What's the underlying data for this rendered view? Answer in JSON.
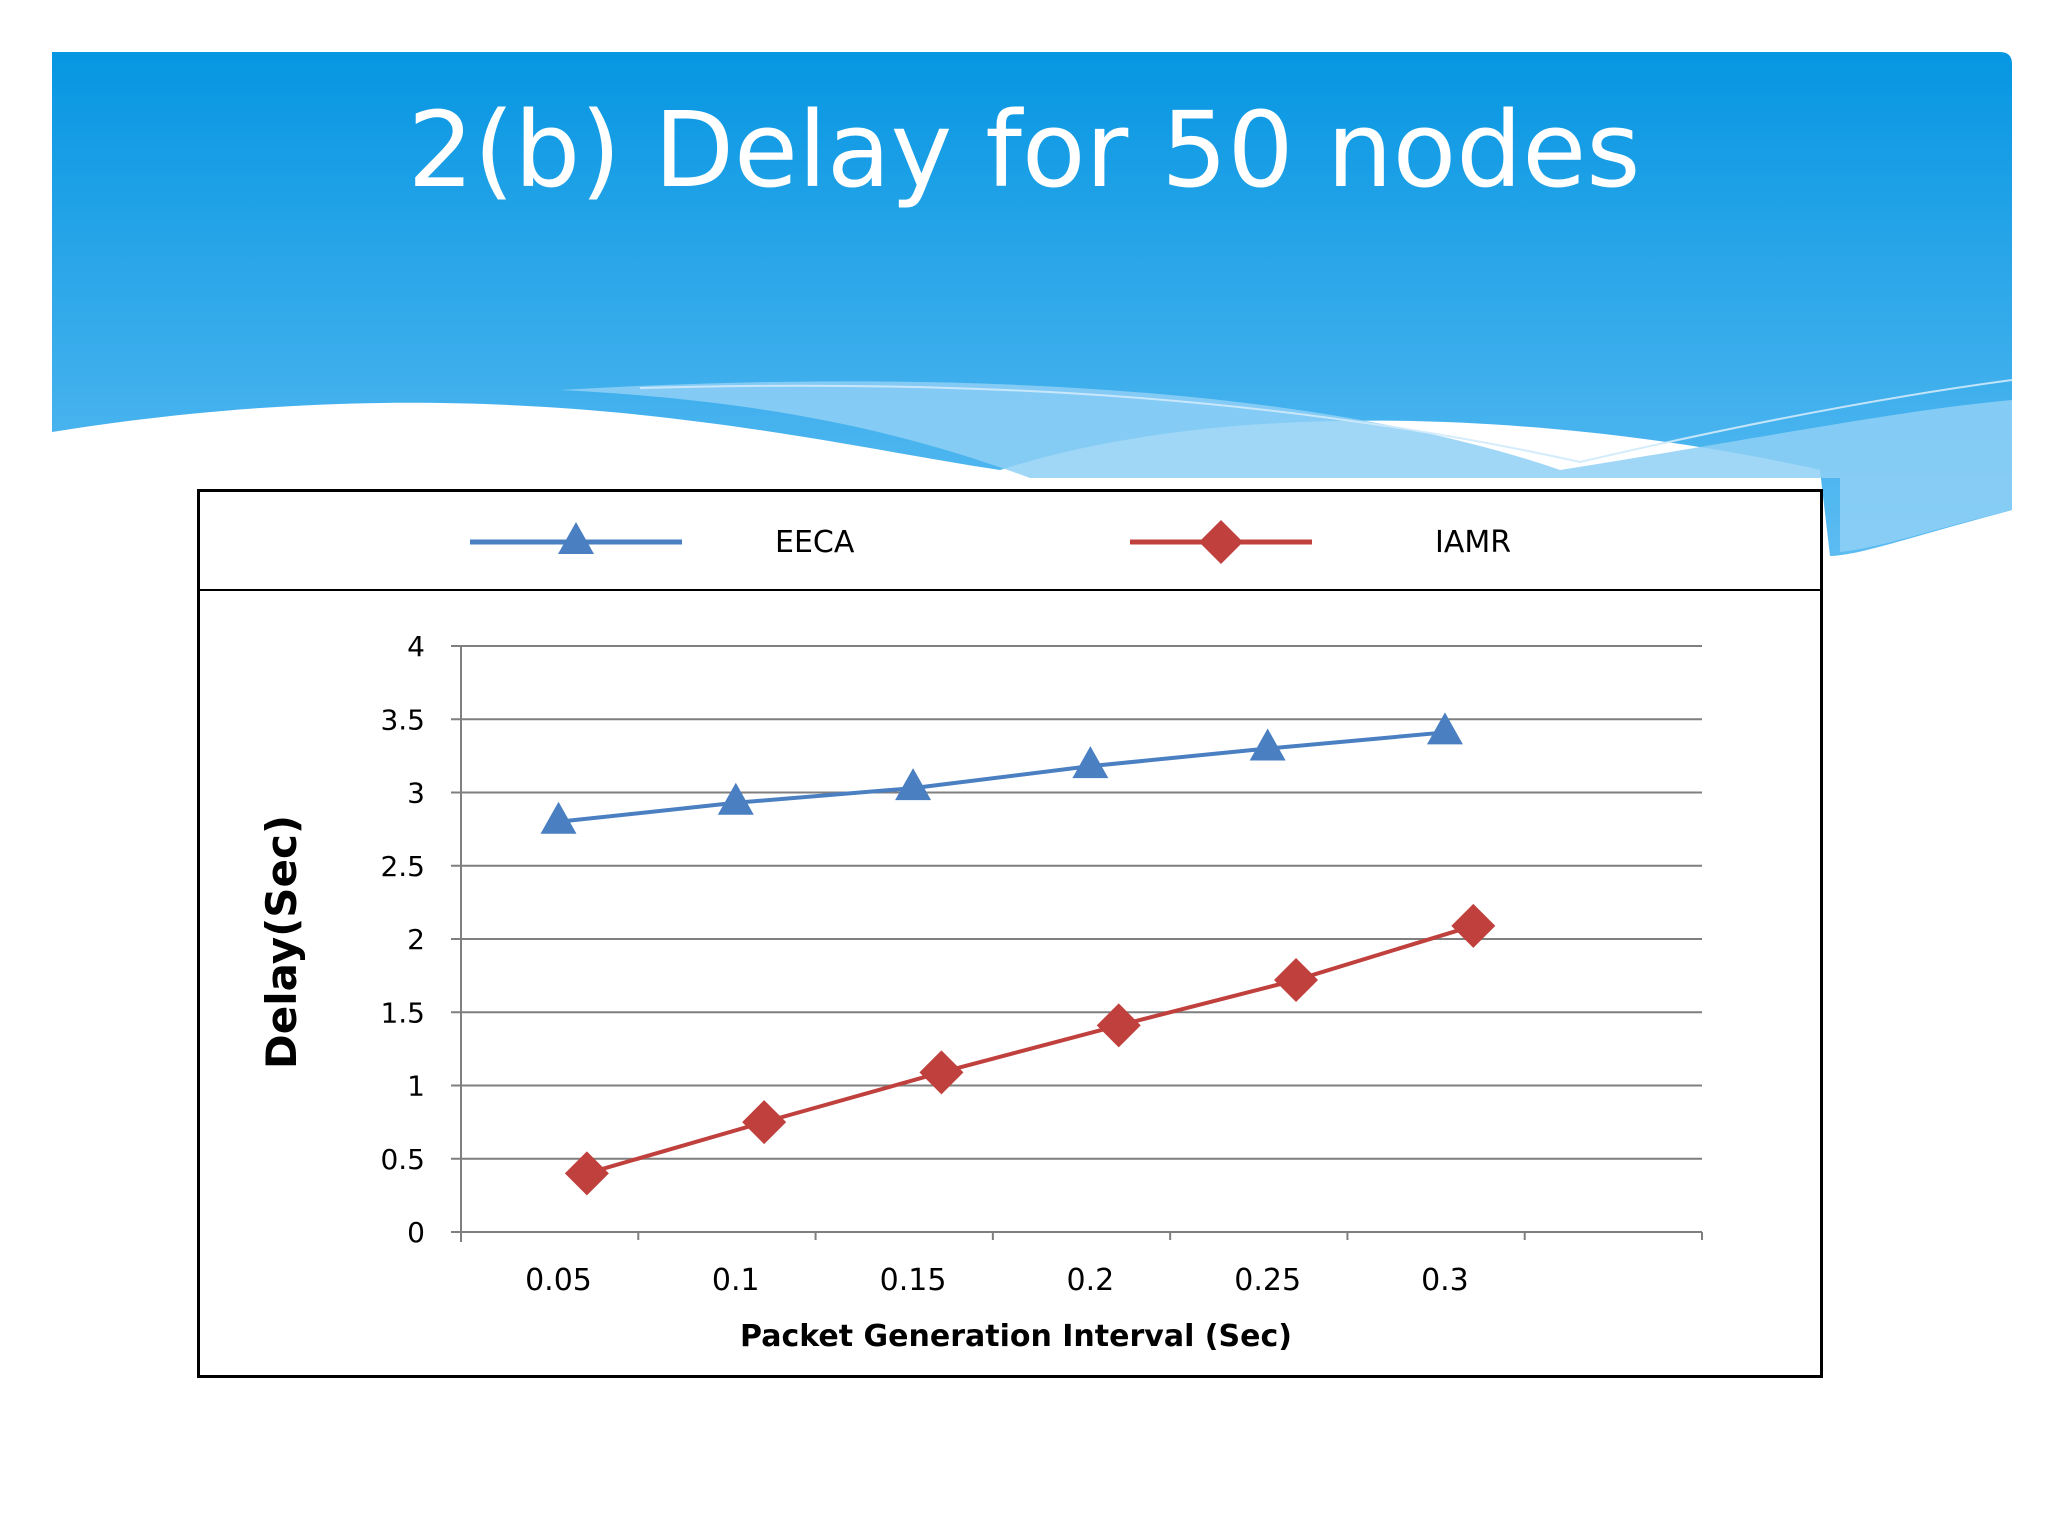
{
  "slide": {
    "title": "2(b) Delay for 50 nodes",
    "colors": {
      "header_top": "#0696e2",
      "header_bottom": "#5cbcf2",
      "wave_light": "#8fd0f6"
    }
  },
  "chart_data": {
    "type": "line",
    "title": "",
    "xlabel": "Packet Generation Interval (Sec)",
    "ylabel": "Delay(Sec)",
    "categories": [
      "0.05",
      "0.1",
      "0.15",
      "0.2",
      "0.25",
      "0.3"
    ],
    "ylim": [
      0,
      4
    ],
    "yticks": [
      "0",
      "0.5",
      "1",
      "1.5",
      "2",
      "2.5",
      "3",
      "3.5",
      "4"
    ],
    "grid": true,
    "legend": "top",
    "series": [
      {
        "name": "EECA",
        "color": "#4a7fc1",
        "marker": "triangle",
        "values": [
          2.8,
          2.93,
          3.03,
          3.18,
          3.3,
          3.41
        ]
      },
      {
        "name": "IAMR",
        "color": "#c0403d",
        "marker": "diamond",
        "values": [
          0.4,
          0.75,
          1.09,
          1.41,
          1.72,
          2.09
        ]
      }
    ]
  }
}
